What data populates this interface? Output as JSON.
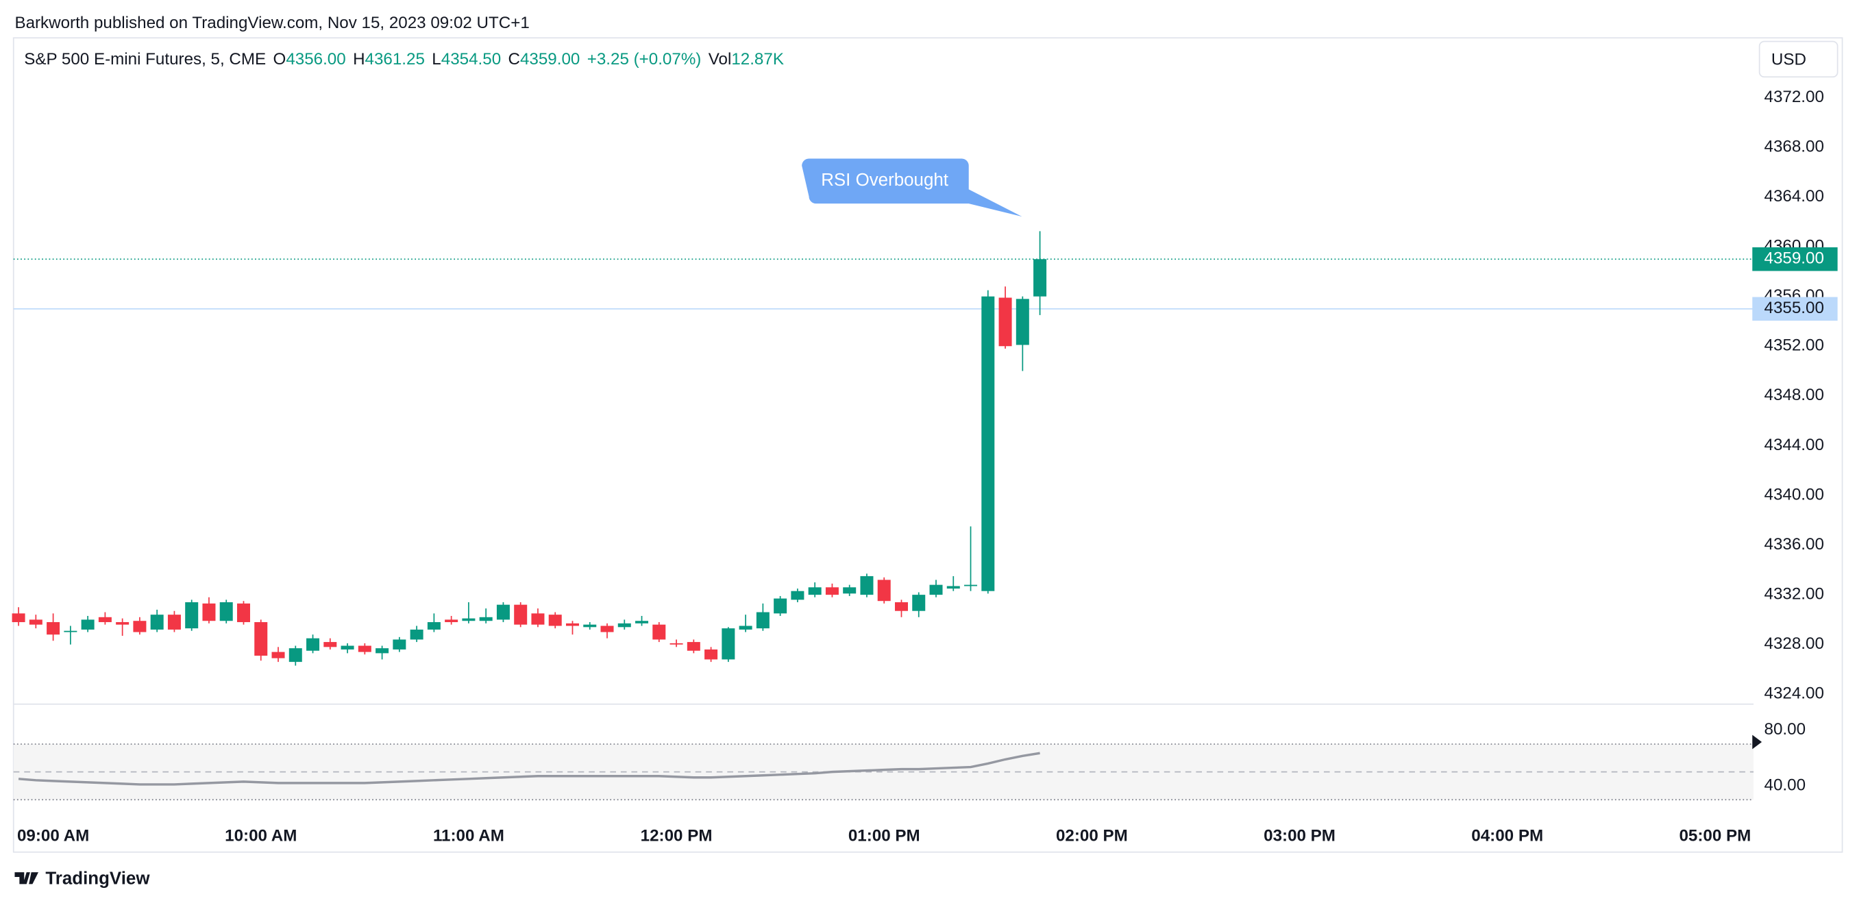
{
  "chart_data": {
    "type": "candlestick",
    "published": "Barkworth published on TradingView.com, Nov 15, 2023 09:02 UTC+1",
    "title": "S&P 500 E-mini Futures, 5, CME",
    "legend": [
      {
        "label": "O",
        "value": "4356.00"
      },
      {
        "label": "H",
        "value": "4361.25"
      },
      {
        "label": "L",
        "value": "4354.50"
      },
      {
        "label": "C",
        "value": "4359.00"
      },
      {
        "label": "",
        "value": "+3.25 (+0.07%)"
      },
      {
        "label": "Vol",
        "value": "12.87K"
      }
    ],
    "currency": "USD",
    "up_color": "#089981",
    "down_color": "#f23645",
    "grid": false,
    "ylim": [
      4323.2,
      4376.8
    ],
    "yticks": [
      {
        "value": 4324,
        "label": "4324.00"
      },
      {
        "value": 4328,
        "label": "4328.00"
      },
      {
        "value": 4332,
        "label": "4332.00"
      },
      {
        "value": 4336,
        "label": "4336.00"
      },
      {
        "value": 4340,
        "label": "4340.00"
      },
      {
        "value": 4344,
        "label": "4344.00"
      },
      {
        "value": 4348,
        "label": "4348.00"
      },
      {
        "value": 4352,
        "label": "4352.00"
      },
      {
        "value": 4356,
        "label": "4356.00"
      },
      {
        "value": 4360,
        "label": "4360.00"
      },
      {
        "value": 4364,
        "label": "4364.00"
      },
      {
        "value": 4368,
        "label": "4368.00"
      },
      {
        "value": 4372,
        "label": "4372.00"
      }
    ],
    "x_labels": [
      "09:00 AM",
      "10:00 AM",
      "11:00 AM",
      "12:00 PM",
      "01:00 PM",
      "02:00 PM",
      "03:00 PM",
      "04:00 PM",
      "05:00 PM"
    ],
    "candles": {
      "open": [
        4330.5,
        4330,
        4329.8,
        4329,
        4329.2,
        4330.2,
        4329.8,
        4329.9,
        4329.2,
        4330.4,
        4329.3,
        4331.3,
        4329.9,
        4331.3,
        4329.8,
        4327.4,
        4326.6,
        4327.5,
        4328.2,
        4327.6,
        4327.9,
        4327.3,
        4327.6,
        4328.4,
        4329.2,
        4330,
        4329.9,
        4329.9,
        4330,
        4331.2,
        4330.5,
        4330.4,
        4329.7,
        4329.4,
        4329.5,
        4329.4,
        4329.7,
        4329.6,
        4328.1,
        4328.2,
        4327.6,
        4326.8,
        4329.2,
        4329.3,
        4330.5,
        4331.6,
        4332,
        4332.6,
        4332.1,
        4332,
        4333.2,
        4331.4,
        4330.7,
        4332,
        4332.5,
        4332.7,
        4332.3,
        4355.9,
        4352.1,
        4356
      ],
      "high": [
        4331,
        4330.4,
        4330.5,
        4329.5,
        4330.3,
        4330.6,
        4330.1,
        4330.2,
        4330.8,
        4330.7,
        4331.6,
        4331.8,
        4331.6,
        4331.5,
        4330,
        4327.8,
        4327.9,
        4328.8,
        4328.5,
        4328.1,
        4328.1,
        4327.9,
        4328.6,
        4329.5,
        4330.5,
        4330.3,
        4331.4,
        4330.9,
        4331.4,
        4331.4,
        4330.9,
        4330.6,
        4329.9,
        4329.8,
        4329.7,
        4330,
        4330.3,
        4329.8,
        4328.4,
        4328.4,
        4327.8,
        4329.4,
        4330.4,
        4331.3,
        4331.9,
        4332.5,
        4333,
        4332.9,
        4332.8,
        4333.7,
        4333.4,
        4331.6,
        4332.2,
        4333.2,
        4333.5,
        4337.5,
        4356.5,
        4356.8,
        4356,
        4361.25
      ],
      "low": [
        4329.5,
        4329.3,
        4328.3,
        4328,
        4329,
        4329.6,
        4328.7,
        4328.8,
        4329,
        4329,
        4329.1,
        4329.7,
        4329.7,
        4329.6,
        4326.7,
        4326.6,
        4326.3,
        4327.3,
        4327.6,
        4327.3,
        4327.2,
        4326.8,
        4327.4,
        4328.2,
        4329,
        4329.6,
        4329.7,
        4329.7,
        4329.8,
        4329.4,
        4329.4,
        4329.3,
        4328.8,
        4329.2,
        4328.5,
        4329.2,
        4329.5,
        4328.2,
        4327.8,
        4327.3,
        4326.6,
        4326.6,
        4329,
        4329.1,
        4330.3,
        4331.4,
        4331.8,
        4331.8,
        4331.9,
        4331.8,
        4331.3,
        4330.2,
        4330.2,
        4331.8,
        4332.3,
        4332.3,
        4332.1,
        4351.8,
        4350,
        4354.5
      ],
      "close": [
        4329.8,
        4329.6,
        4328.8,
        4329.1,
        4330,
        4329.8,
        4329.6,
        4329,
        4330.4,
        4329.2,
        4331.4,
        4329.9,
        4331.4,
        4329.8,
        4327.1,
        4326.9,
        4327.7,
        4328.5,
        4327.8,
        4327.9,
        4327.4,
        4327.7,
        4328.4,
        4329.2,
        4329.8,
        4329.8,
        4330.1,
        4330.2,
        4331.2,
        4329.6,
        4329.6,
        4329.5,
        4329.5,
        4329.6,
        4329,
        4329.7,
        4329.9,
        4328.4,
        4328,
        4327.5,
        4326.8,
        4329.3,
        4329.5,
        4330.6,
        4331.7,
        4332.3,
        4332.6,
        4332,
        4332.6,
        4333.5,
        4331.5,
        4330.7,
        4332,
        4332.8,
        4332.7,
        4332.8,
        4356,
        4352,
        4355.8,
        4359
      ]
    },
    "last_price": {
      "value": 4359,
      "label": "4359.00",
      "color": "#089981"
    },
    "price_line": {
      "value": 4355,
      "label": "4355.00",
      "color": "#bbd9fb"
    },
    "annotation": {
      "text": "RSI Overbought",
      "color": "#6fa7f5"
    },
    "rsi": {
      "ylim": [
        13.6,
        98.7
      ],
      "yticks": [
        {
          "value": 80,
          "label": "80.00"
        },
        {
          "value": 40,
          "label": "40.00"
        }
      ],
      "levels": [
        70,
        50,
        30
      ],
      "color": "#9598a1",
      "values": [
        45,
        44,
        43.5,
        43,
        42.5,
        42,
        41.5,
        41,
        41,
        41,
        41.5,
        42,
        42.5,
        43,
        42.5,
        42,
        42,
        42,
        42,
        42,
        42,
        42.5,
        43,
        43.5,
        44,
        44.5,
        45,
        45.5,
        46,
        46.5,
        47,
        47,
        47,
        47,
        47,
        47,
        47,
        47,
        46.5,
        46,
        46,
        46.5,
        47,
        47.5,
        48,
        48.5,
        49,
        50,
        50.5,
        51,
        51.5,
        52,
        52,
        52.5,
        53,
        53.5,
        56,
        59,
        61.5,
        63.5
      ]
    },
    "brand": "TradingView"
  }
}
